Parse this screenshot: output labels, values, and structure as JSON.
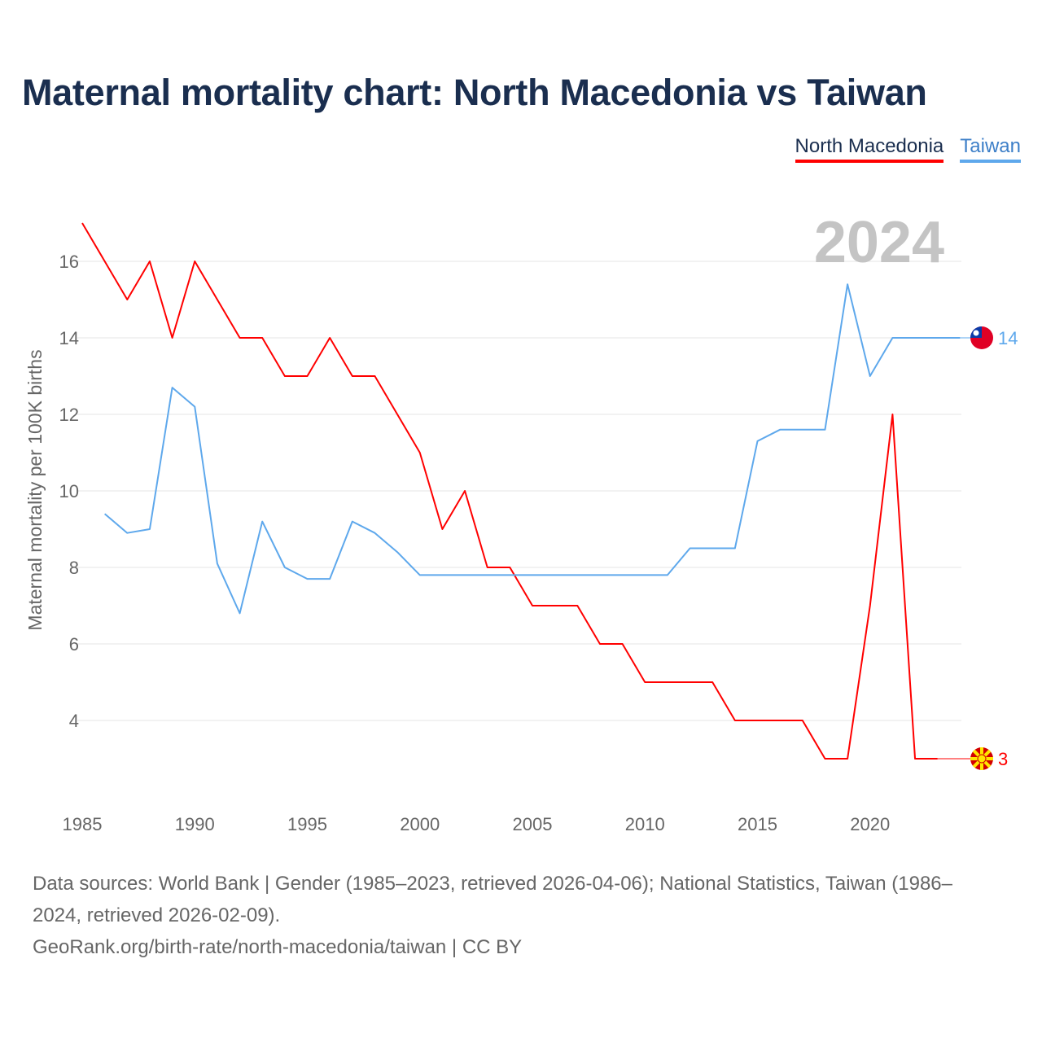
{
  "chart_data": {
    "type": "line",
    "title": "Maternal mortality chart: North Macedonia vs Taiwan",
    "ylabel": "Maternal mortality per 100K births",
    "xlabel": "",
    "year_label": "2024",
    "xlim": [
      1985,
      2024
    ],
    "ylim": [
      2,
      17.5
    ],
    "x_ticks": [
      1985,
      1990,
      1995,
      2000,
      2005,
      2010,
      2015,
      2020
    ],
    "y_ticks": [
      4,
      6,
      8,
      10,
      12,
      14,
      16
    ],
    "grid": true,
    "legend_position": "top-right",
    "series": [
      {
        "name": "North Macedonia",
        "color": "#ff0000",
        "end_label": "3",
        "x": [
          1985,
          1986,
          1987,
          1988,
          1989,
          1990,
          1991,
          1992,
          1993,
          1994,
          1995,
          1996,
          1997,
          1998,
          1999,
          2000,
          2001,
          2002,
          2003,
          2004,
          2005,
          2006,
          2007,
          2008,
          2009,
          2010,
          2011,
          2012,
          2013,
          2014,
          2015,
          2016,
          2017,
          2018,
          2019,
          2020,
          2021,
          2022,
          2023
        ],
        "values": [
          17,
          16,
          15,
          16,
          14,
          16,
          15,
          14,
          14,
          13,
          13,
          14,
          13,
          13,
          12,
          11,
          9,
          10,
          8,
          8,
          7,
          7,
          7,
          6,
          6,
          5,
          5,
          5,
          5,
          4,
          4,
          4,
          4,
          3,
          3,
          7,
          12,
          3,
          3
        ]
      },
      {
        "name": "Taiwan",
        "color": "#5ea8ec",
        "end_label": "14",
        "x": [
          1986,
          1987,
          1988,
          1989,
          1990,
          1991,
          1992,
          1993,
          1994,
          1995,
          1996,
          1997,
          1998,
          1999,
          2000,
          2001,
          2002,
          2003,
          2004,
          2005,
          2006,
          2007,
          2008,
          2009,
          2010,
          2011,
          2012,
          2013,
          2014,
          2015,
          2016,
          2017,
          2018,
          2019,
          2020,
          2021,
          2022,
          2023,
          2024
        ],
        "values": [
          9.4,
          8.9,
          9.0,
          12.7,
          12.2,
          8.1,
          6.8,
          9.2,
          8.0,
          7.7,
          7.7,
          9.2,
          8.9,
          8.4,
          7.8,
          7.8,
          7.8,
          7.8,
          7.8,
          7.8,
          7.8,
          7.8,
          7.8,
          7.8,
          7.8,
          7.8,
          8.5,
          8.5,
          8.5,
          11.3,
          11.6,
          11.6,
          11.6,
          15.4,
          13.0,
          14.0,
          14.0,
          14.0,
          14.0
        ]
      }
    ]
  },
  "sources": {
    "line1": "Data sources: World Bank | Gender (1985–2023, retrieved 2026-04-06); National Statistics, Taiwan (1986–2024, retrieved 2026-02-09).",
    "line2": "GeoRank.org/birth-rate/north-macedonia/taiwan | CC BY"
  }
}
